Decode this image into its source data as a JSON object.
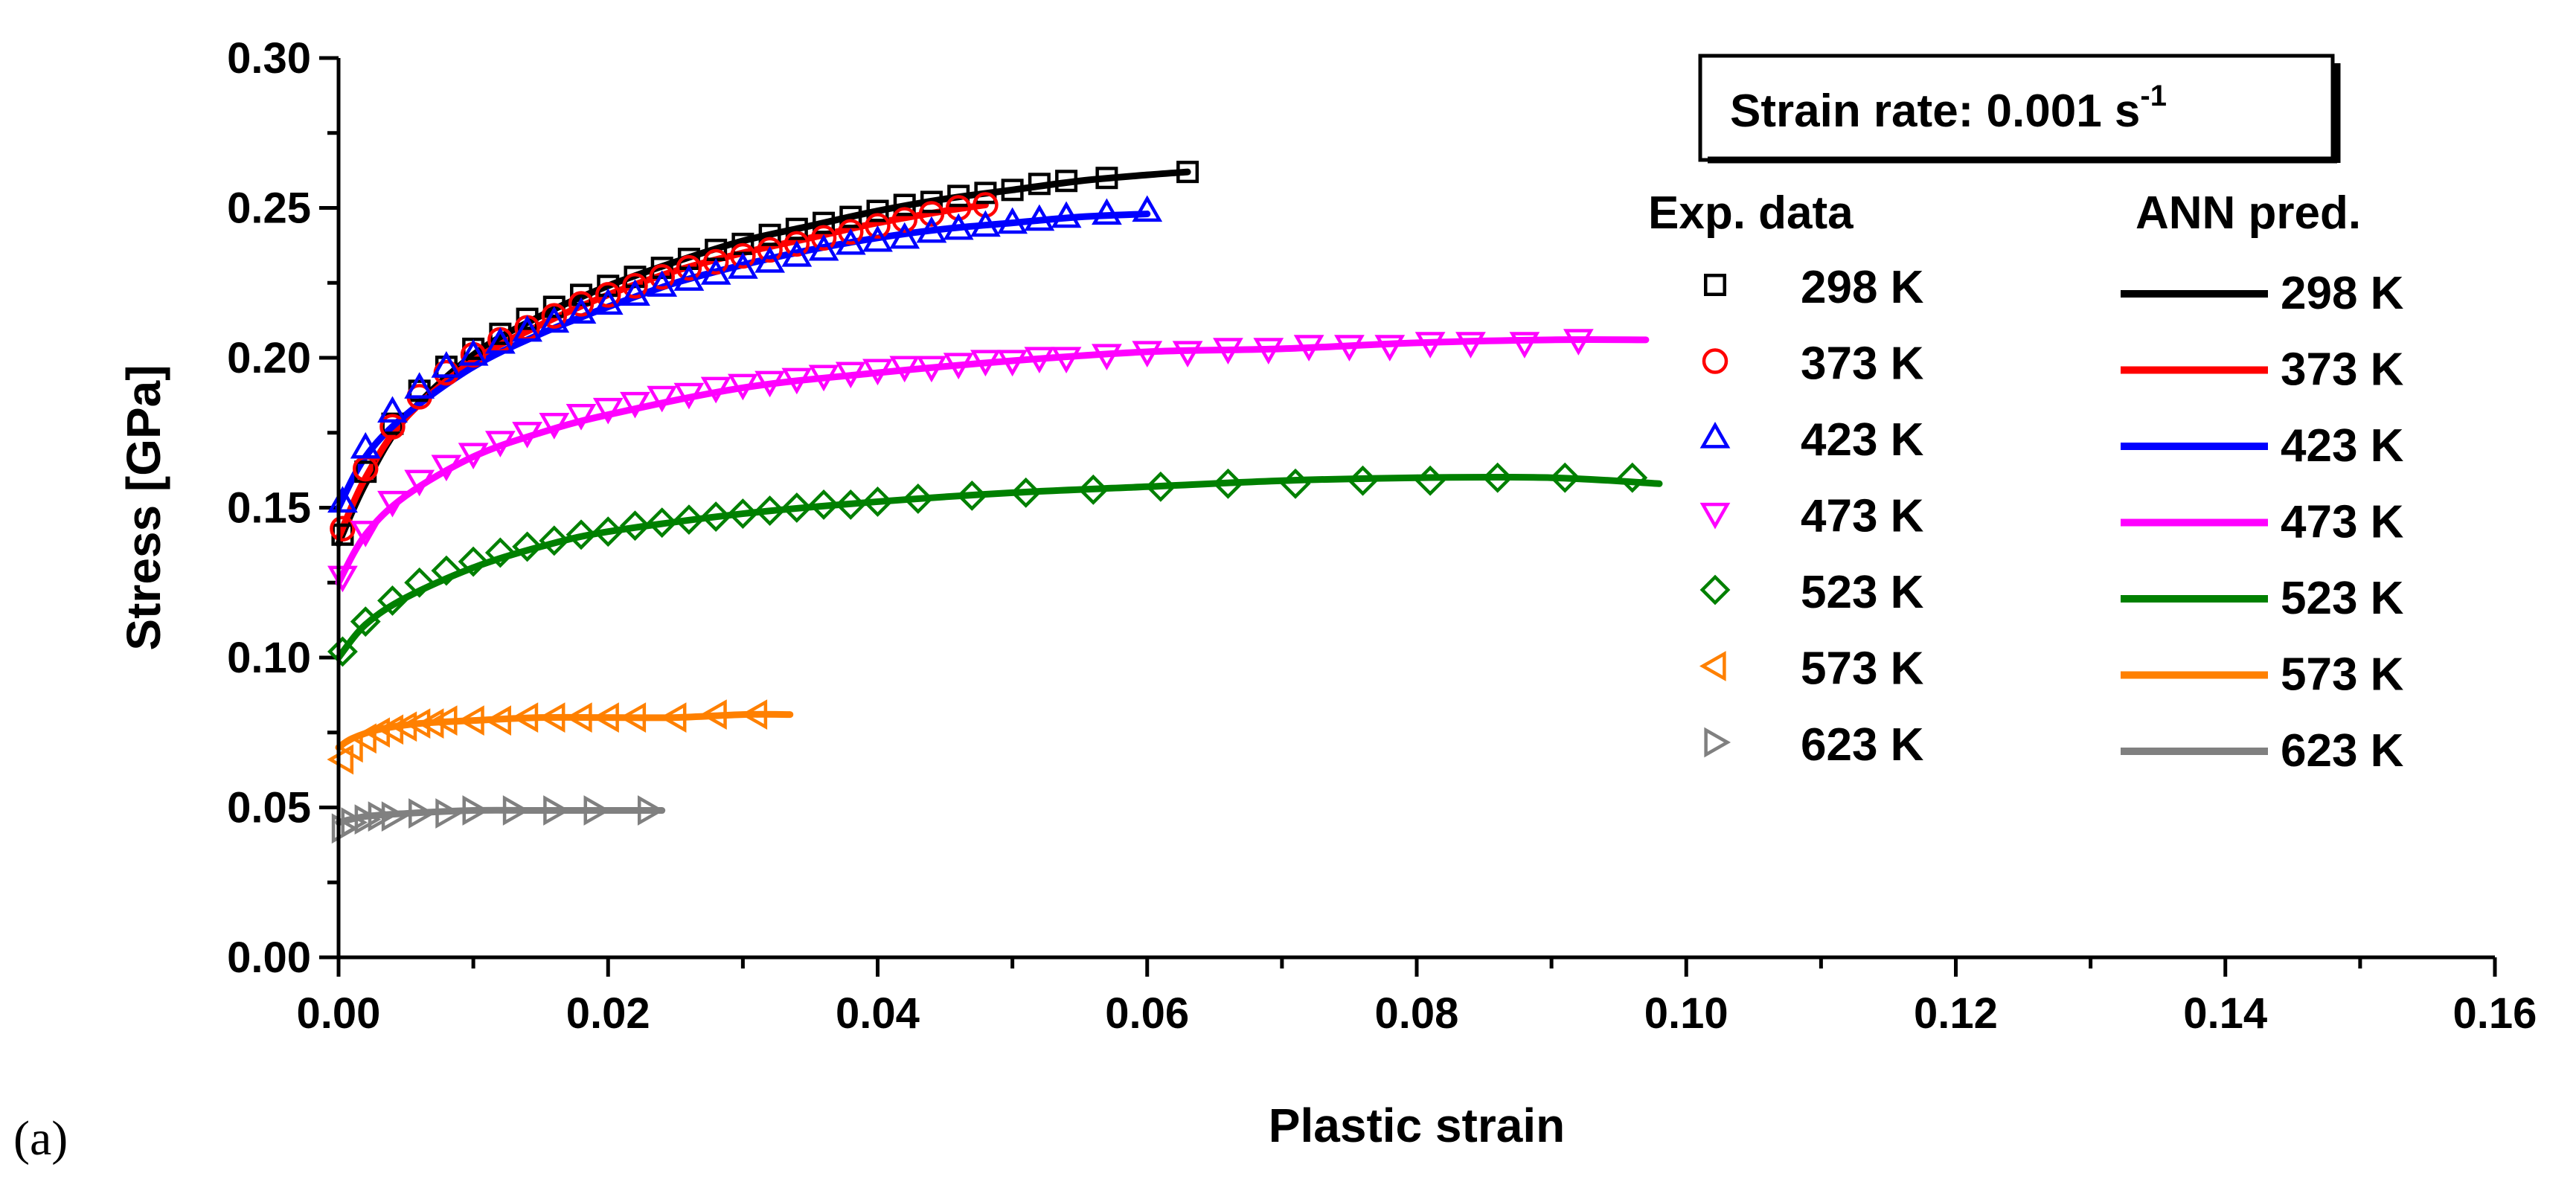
{
  "panel_label": "(a)",
  "chart_data": {
    "type": "scatter",
    "title": "",
    "annotation": {
      "text": "Strain rate: 0.001 s",
      "superscript": "-1"
    },
    "xlabel": "Plastic strain",
    "ylabel": "Stress [GPa]",
    "xlim": [
      0,
      0.16
    ],
    "ylim": [
      0,
      0.3
    ],
    "xticks": [
      "0.00",
      "0.02",
      "0.04",
      "0.06",
      "0.08",
      "0.10",
      "0.12",
      "0.14",
      "0.16"
    ],
    "yticks": [
      "0.00",
      "0.05",
      "0.10",
      "0.15",
      "0.20",
      "0.25",
      "0.30"
    ],
    "legend_titles": {
      "experimental": "Exp. data",
      "model": "ANN pred."
    },
    "series": [
      {
        "name": "298 K",
        "color": "#000000",
        "marker": "square",
        "exp": {
          "x": [
            0.0003,
            0.002,
            0.004,
            0.006,
            0.008,
            0.01,
            0.012,
            0.014,
            0.016,
            0.018,
            0.02,
            0.022,
            0.024,
            0.026,
            0.028,
            0.03,
            0.032,
            0.034,
            0.036,
            0.038,
            0.04,
            0.042,
            0.044,
            0.046,
            0.048,
            0.05,
            0.052,
            0.054,
            0.057,
            0.063
          ],
          "y": [
            0.141,
            0.162,
            0.178,
            0.189,
            0.197,
            0.203,
            0.208,
            0.213,
            0.217,
            0.221,
            0.224,
            0.227,
            0.23,
            0.233,
            0.236,
            0.238,
            0.241,
            0.243,
            0.245,
            0.247,
            0.249,
            0.251,
            0.252,
            0.254,
            0.255,
            0.256,
            0.258,
            0.259,
            0.26,
            0.262
          ]
        },
        "pred": {
          "x": [
            0,
            0.002,
            0.005,
            0.01,
            0.015,
            0.02,
            0.025,
            0.03,
            0.035,
            0.04,
            0.045,
            0.05,
            0.055,
            0.06,
            0.063
          ],
          "y": [
            0.138,
            0.158,
            0.18,
            0.201,
            0.214,
            0.224,
            0.232,
            0.239,
            0.244,
            0.249,
            0.253,
            0.256,
            0.259,
            0.261,
            0.262
          ]
        }
      },
      {
        "name": "373 K",
        "color": "#ff0000",
        "marker": "circle",
        "exp": {
          "x": [
            0.0003,
            0.002,
            0.004,
            0.006,
            0.008,
            0.01,
            0.012,
            0.014,
            0.016,
            0.018,
            0.02,
            0.022,
            0.024,
            0.026,
            0.028,
            0.03,
            0.032,
            0.034,
            0.036,
            0.038,
            0.04,
            0.042,
            0.044,
            0.046,
            0.048
          ],
          "y": [
            0.143,
            0.163,
            0.177,
            0.187,
            0.195,
            0.201,
            0.206,
            0.21,
            0.214,
            0.218,
            0.221,
            0.224,
            0.227,
            0.23,
            0.232,
            0.234,
            0.236,
            0.238,
            0.24,
            0.242,
            0.244,
            0.246,
            0.248,
            0.25,
            0.251
          ]
        },
        "pred": {
          "x": [
            0,
            0.002,
            0.005,
            0.01,
            0.015,
            0.02,
            0.025,
            0.03,
            0.035,
            0.04,
            0.045,
            0.048
          ],
          "y": [
            0.14,
            0.16,
            0.18,
            0.199,
            0.211,
            0.221,
            0.229,
            0.235,
            0.24,
            0.245,
            0.249,
            0.251
          ]
        }
      },
      {
        "name": "423 K",
        "color": "#0000ff",
        "marker": "triangle-up",
        "exp": {
          "x": [
            0.0003,
            0.002,
            0.004,
            0.006,
            0.008,
            0.01,
            0.012,
            0.014,
            0.016,
            0.018,
            0.02,
            0.022,
            0.024,
            0.026,
            0.028,
            0.03,
            0.032,
            0.034,
            0.036,
            0.038,
            0.04,
            0.042,
            0.044,
            0.046,
            0.048,
            0.05,
            0.052,
            0.054,
            0.057,
            0.06
          ],
          "y": [
            0.152,
            0.17,
            0.182,
            0.19,
            0.197,
            0.201,
            0.205,
            0.209,
            0.212,
            0.215,
            0.218,
            0.221,
            0.224,
            0.226,
            0.228,
            0.23,
            0.232,
            0.234,
            0.236,
            0.238,
            0.239,
            0.24,
            0.242,
            0.243,
            0.244,
            0.245,
            0.246,
            0.247,
            0.248,
            0.249
          ]
        },
        "pred": {
          "x": [
            0,
            0.002,
            0.005,
            0.01,
            0.015,
            0.02,
            0.025,
            0.03,
            0.035,
            0.04,
            0.045,
            0.05,
            0.055,
            0.06
          ],
          "y": [
            0.15,
            0.167,
            0.181,
            0.197,
            0.208,
            0.217,
            0.225,
            0.231,
            0.236,
            0.24,
            0.243,
            0.245,
            0.247,
            0.248
          ]
        }
      },
      {
        "name": "473 K",
        "color": "#ff00ff",
        "marker": "triangle-down",
        "exp": {
          "x": [
            0.0003,
            0.002,
            0.004,
            0.006,
            0.008,
            0.01,
            0.012,
            0.014,
            0.016,
            0.018,
            0.02,
            0.022,
            0.024,
            0.026,
            0.028,
            0.03,
            0.032,
            0.034,
            0.036,
            0.038,
            0.04,
            0.042,
            0.044,
            0.046,
            0.048,
            0.05,
            0.052,
            0.054,
            0.057,
            0.06,
            0.063,
            0.066,
            0.069,
            0.072,
            0.075,
            0.078,
            0.081,
            0.084,
            0.088,
            0.092
          ],
          "y": [
            0.127,
            0.142,
            0.152,
            0.159,
            0.164,
            0.168,
            0.172,
            0.175,
            0.178,
            0.181,
            0.183,
            0.185,
            0.187,
            0.188,
            0.19,
            0.191,
            0.192,
            0.193,
            0.194,
            0.195,
            0.196,
            0.197,
            0.197,
            0.198,
            0.199,
            0.199,
            0.2,
            0.2,
            0.201,
            0.202,
            0.202,
            0.203,
            0.203,
            0.204,
            0.204,
            0.204,
            0.205,
            0.205,
            0.205,
            0.206
          ]
        },
        "pred": {
          "x": [
            0,
            0.002,
            0.005,
            0.01,
            0.015,
            0.02,
            0.03,
            0.04,
            0.05,
            0.06,
            0.07,
            0.08,
            0.09,
            0.097
          ],
          "y": [
            0.125,
            0.141,
            0.154,
            0.167,
            0.175,
            0.181,
            0.19,
            0.195,
            0.199,
            0.202,
            0.203,
            0.205,
            0.206,
            0.206
          ]
        }
      },
      {
        "name": "523 K",
        "color": "#008000",
        "marker": "diamond",
        "exp": {
          "x": [
            0.0003,
            0.002,
            0.004,
            0.006,
            0.008,
            0.01,
            0.012,
            0.014,
            0.016,
            0.018,
            0.02,
            0.022,
            0.024,
            0.026,
            0.028,
            0.03,
            0.032,
            0.034,
            0.036,
            0.038,
            0.04,
            0.043,
            0.047,
            0.051,
            0.056,
            0.061,
            0.066,
            0.071,
            0.076,
            0.081,
            0.086,
            0.091,
            0.096
          ],
          "y": [
            0.102,
            0.112,
            0.119,
            0.125,
            0.129,
            0.132,
            0.135,
            0.137,
            0.139,
            0.141,
            0.142,
            0.144,
            0.145,
            0.146,
            0.147,
            0.148,
            0.149,
            0.15,
            0.151,
            0.151,
            0.152,
            0.153,
            0.154,
            0.155,
            0.156,
            0.157,
            0.158,
            0.158,
            0.159,
            0.159,
            0.16,
            0.16,
            0.16
          ]
        },
        "pred": {
          "x": [
            0,
            0.002,
            0.005,
            0.01,
            0.015,
            0.02,
            0.03,
            0.04,
            0.05,
            0.06,
            0.07,
            0.08,
            0.09,
            0.098
          ],
          "y": [
            0.1,
            0.111,
            0.12,
            0.13,
            0.137,
            0.142,
            0.148,
            0.152,
            0.155,
            0.157,
            0.159,
            0.16,
            0.16,
            0.158
          ]
        }
      },
      {
        "name": "573 K",
        "color": "#ff8000",
        "marker": "triangle-left",
        "exp": {
          "x": [
            0.0003,
            0.001,
            0.002,
            0.003,
            0.004,
            0.005,
            0.006,
            0.007,
            0.008,
            0.01,
            0.012,
            0.014,
            0.016,
            0.018,
            0.02,
            0.022,
            0.025,
            0.028,
            0.031
          ],
          "y": [
            0.066,
            0.07,
            0.073,
            0.075,
            0.076,
            0.077,
            0.078,
            0.078,
            0.079,
            0.079,
            0.079,
            0.08,
            0.08,
            0.08,
            0.08,
            0.08,
            0.08,
            0.081,
            0.081
          ]
        },
        "pred": {
          "x": [
            0,
            0.001,
            0.003,
            0.006,
            0.01,
            0.015,
            0.02,
            0.025,
            0.03,
            0.0335
          ],
          "y": [
            0.07,
            0.073,
            0.076,
            0.078,
            0.079,
            0.08,
            0.08,
            0.08,
            0.081,
            0.081
          ]
        }
      },
      {
        "name": "623 K",
        "color": "#808080",
        "marker": "triangle-right",
        "exp": {
          "x": [
            0.0003,
            0.001,
            0.002,
            0.003,
            0.004,
            0.006,
            0.008,
            0.01,
            0.013,
            0.016,
            0.019,
            0.023
          ],
          "y": [
            0.043,
            0.045,
            0.046,
            0.047,
            0.047,
            0.048,
            0.048,
            0.049,
            0.049,
            0.049,
            0.049,
            0.049
          ]
        },
        "pred": {
          "x": [
            0,
            0.002,
            0.005,
            0.01,
            0.015,
            0.02,
            0.024
          ],
          "y": [
            0.045,
            0.047,
            0.048,
            0.049,
            0.049,
            0.049,
            0.049
          ]
        }
      }
    ]
  }
}
